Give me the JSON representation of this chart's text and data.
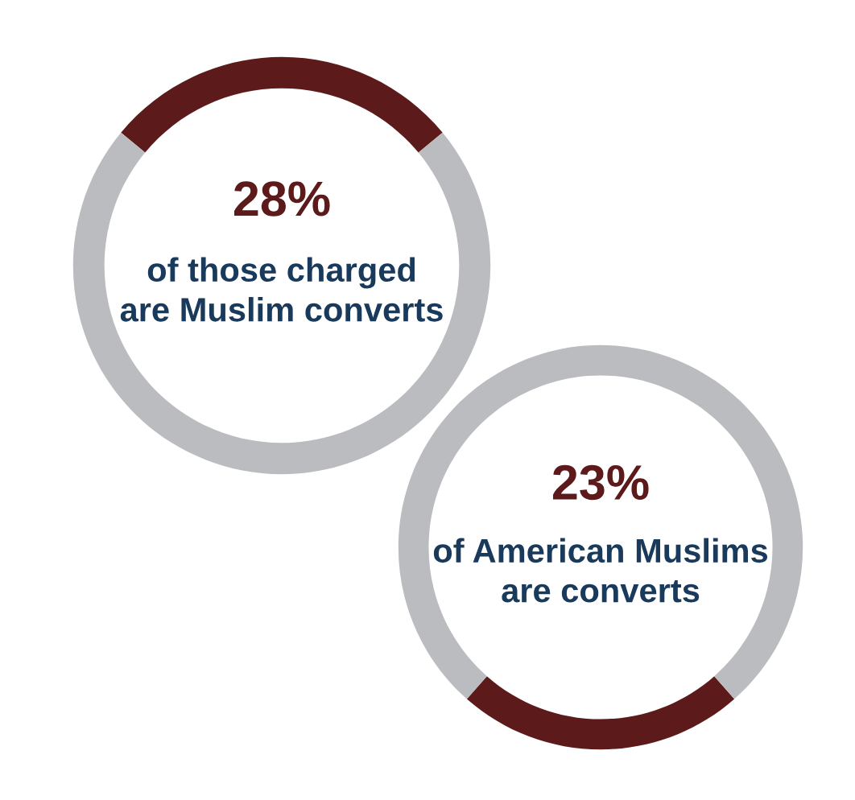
{
  "chart_data": [
    {
      "type": "donut",
      "categories": [
        null,
        null
      ],
      "values": [
        28,
        72
      ],
      "colors": [
        "#5c1a1b",
        "#bbbcbf"
      ],
      "annotations": [
        "28%",
        "of those charged\nare Muslim converts"
      ]
    },
    {
      "type": "donut",
      "categories": [
        null,
        null
      ],
      "values": [
        23,
        77
      ],
      "colors": [
        "#5c1a1b",
        "#bbbcbf"
      ],
      "annotations": [
        "23%",
        "of American Muslims\nare converts"
      ]
    }
  ]
}
